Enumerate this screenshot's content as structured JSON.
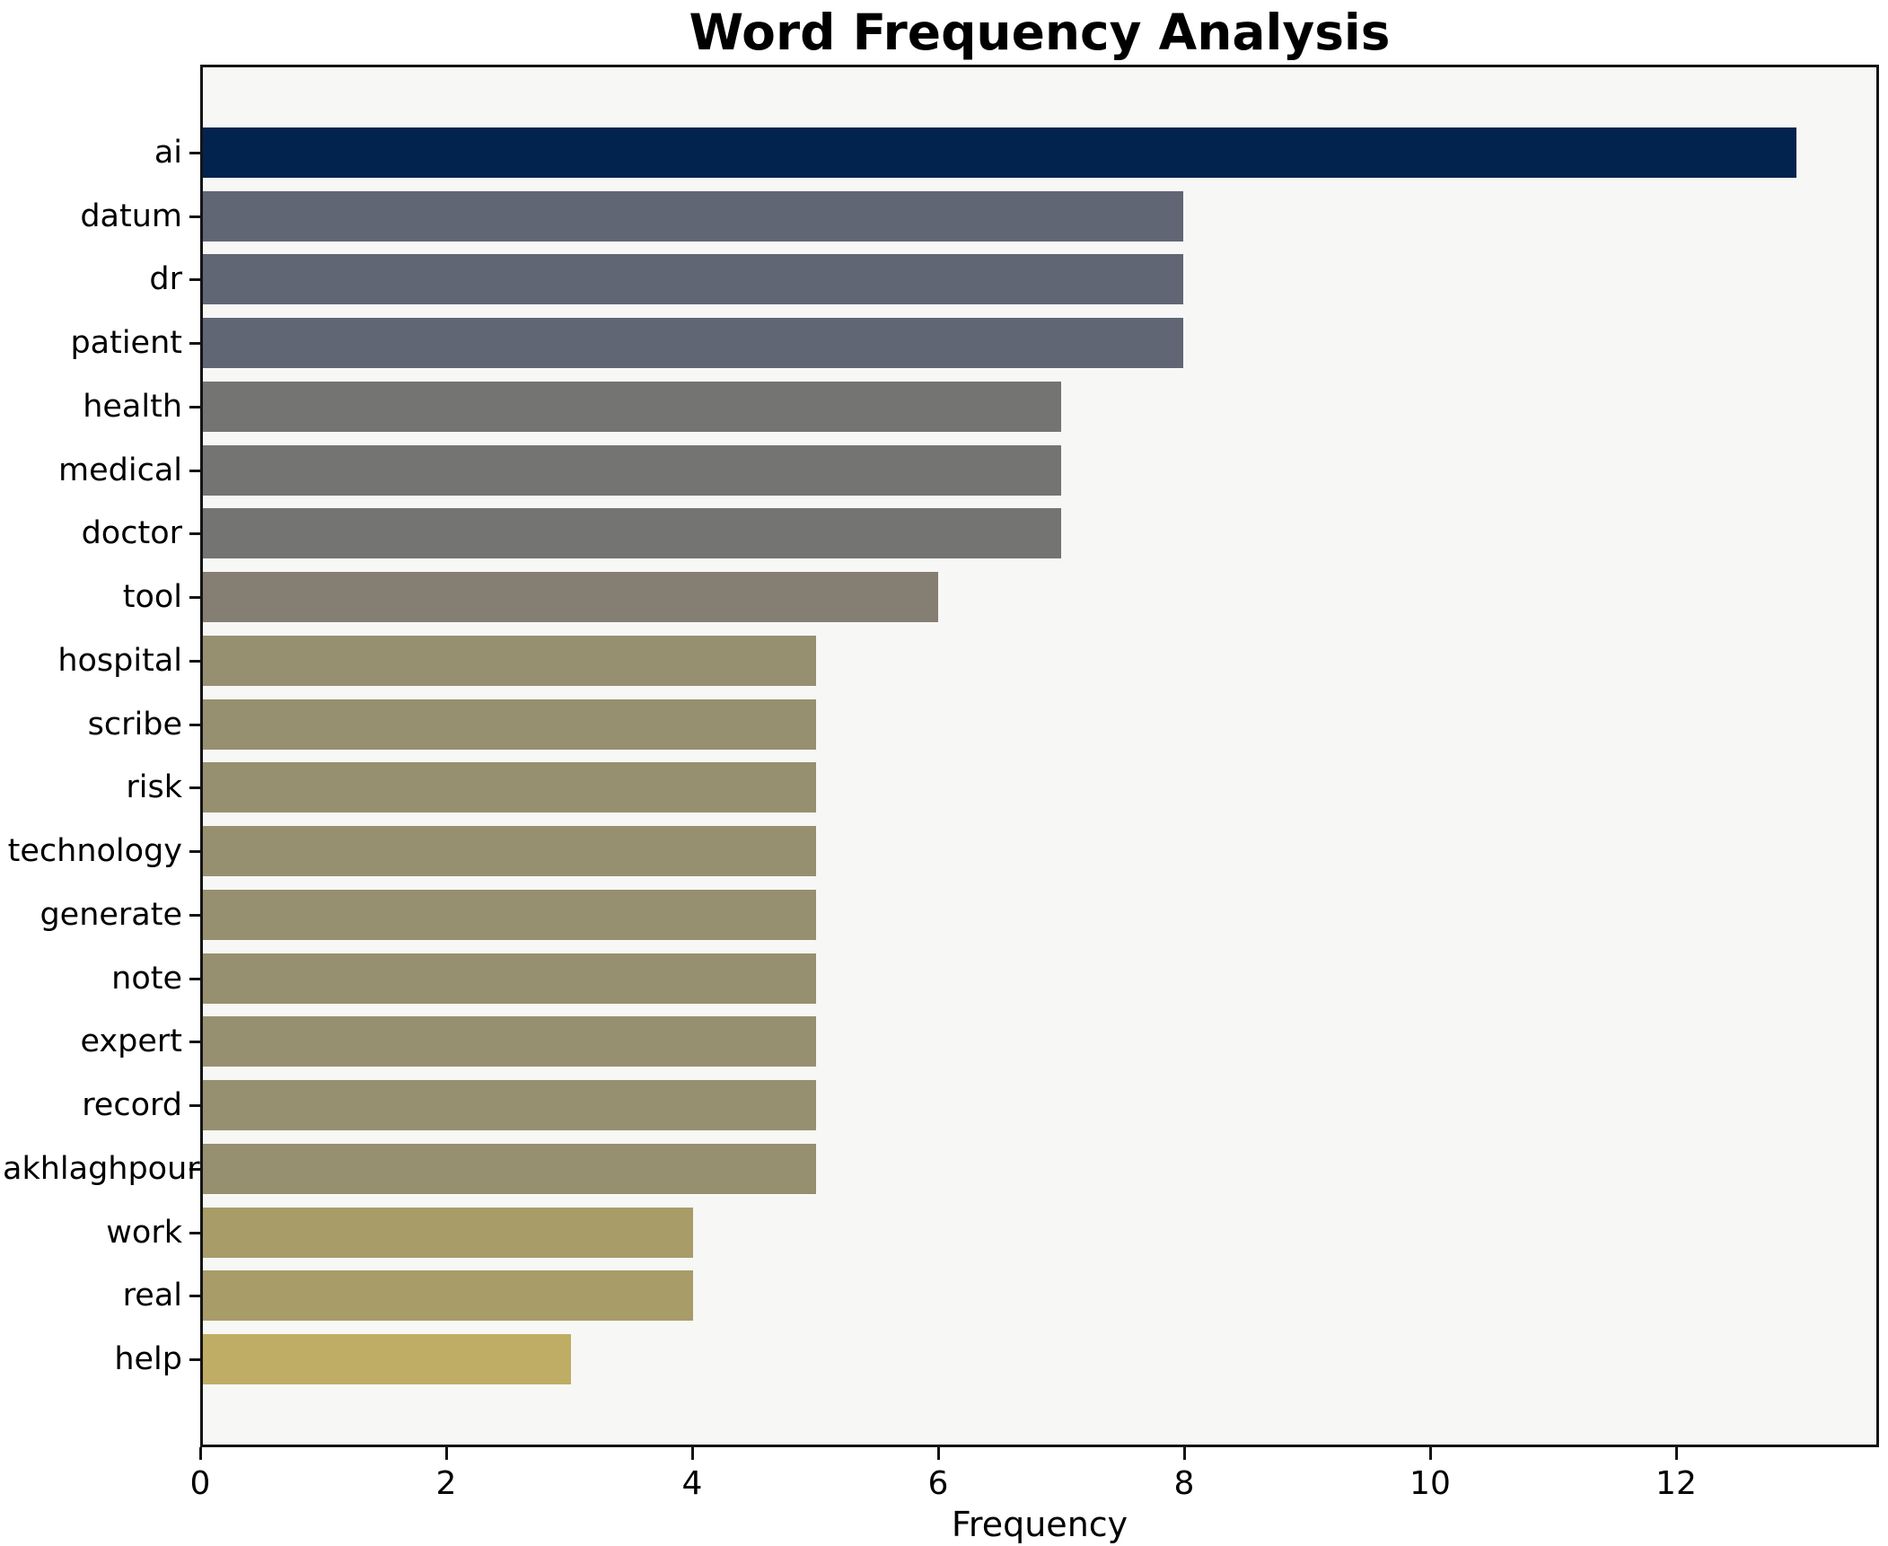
{
  "chart_data": {
    "type": "bar",
    "orientation": "horizontal",
    "title": "Word Frequency Analysis",
    "xlabel": "Frequency",
    "ylabel": "",
    "categories": [
      "ai",
      "datum",
      "dr",
      "patient",
      "health",
      "medical",
      "doctor",
      "tool",
      "hospital",
      "scribe",
      "risk",
      "technology",
      "generate",
      "note",
      "expert",
      "record",
      "akhlaghpour",
      "work",
      "real",
      "help"
    ],
    "values": [
      13,
      8,
      8,
      8,
      7,
      7,
      7,
      6,
      5,
      5,
      5,
      5,
      5,
      5,
      5,
      5,
      5,
      4,
      4,
      3
    ],
    "x_ticks": [
      0,
      2,
      4,
      6,
      8,
      10,
      12
    ],
    "xlim": [
      0,
      13.65
    ],
    "grid": false,
    "legend": "none",
    "colors": {
      "value_13": "#02234e",
      "value_8": "#616675",
      "value_7": "#747473",
      "value_6": "#847f72",
      "value_5": "#969070",
      "value_4": "#a89c68",
      "value_3": "#c0ad65",
      "plot_background": "#f7f7f5",
      "figure_background": "#ffffff",
      "axis": "#141414",
      "text": "#000000"
    }
  }
}
